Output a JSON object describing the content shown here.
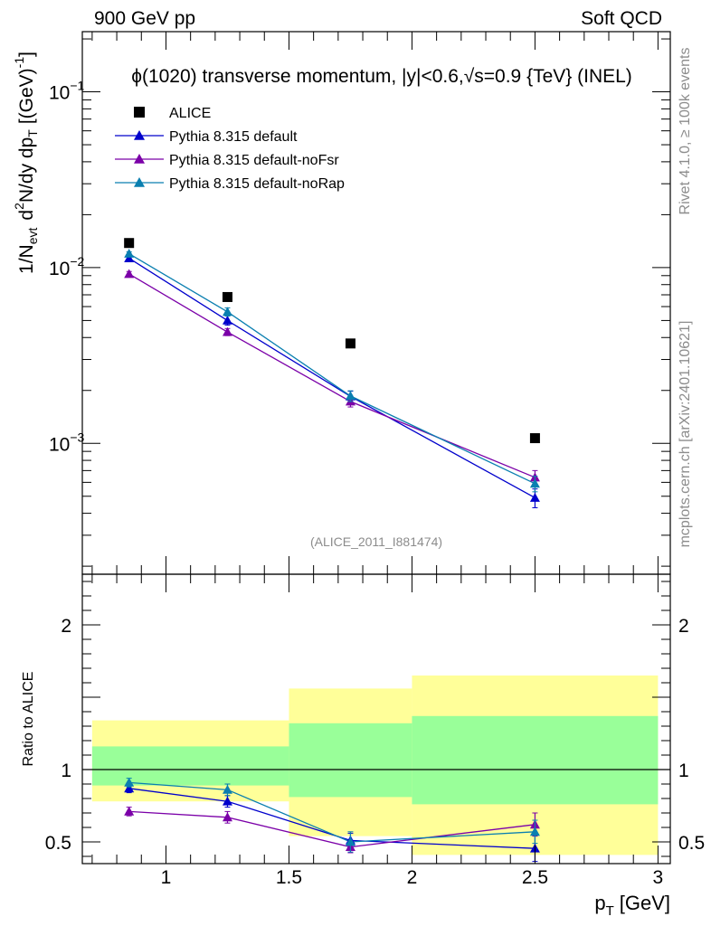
{
  "header": {
    "left": "900 GeV pp",
    "right": "Soft QCD"
  },
  "side_text": {
    "rivet": "Rivet 4.1.0, ≥ 100k events",
    "mcplots": "mcplots.cern.ch [arXiv:2401.10621]"
  },
  "chart_data": [
    {
      "type": "scatter",
      "panel": "main",
      "title": "ϕ(1020) transverse momentum, |y|<0.6,√s=0.9 {TeV} (INEL)",
      "ylabel": "1/N_evt  d²N/dy dp_T [(GeV)⁻¹]",
      "ylabel_parts": {
        "a": "1/N",
        "a_sub": "evt",
        "b": "d",
        "b_sup": "2",
        "c": "N/dy dp",
        "c_sub": "T",
        "d": "[(GeV)",
        "d_sup": "-1",
        "e": "]"
      },
      "yscale": "log",
      "xlim": [
        0.66,
        3.05
      ],
      "ylim": [
        0.00018,
        0.22
      ],
      "yticks": [
        {
          "value": 0.1,
          "base": "10",
          "exp": "−1"
        },
        {
          "value": 0.01,
          "base": "10",
          "exp": "−2"
        },
        {
          "value": 0.001,
          "base": "10",
          "exp": "−3"
        }
      ],
      "watermark": "(ALICE_2011_I881474)",
      "legend_position": "top-left",
      "x": [
        0.85,
        1.25,
        1.75,
        2.5
      ],
      "series": [
        {
          "name": "ALICE",
          "marker": "square",
          "color": "#000000",
          "values": [
            0.0138,
            0.0068,
            0.0037,
            0.00107
          ],
          "errors": [
            0,
            0,
            0,
            0
          ]
        },
        {
          "name": "Pythia 8.315 default",
          "marker": "triangle",
          "color": "#0000cc",
          "values": [
            0.0113,
            0.005,
            0.00185,
            0.00049
          ],
          "errors": [
            0.0003,
            0.0003,
            0.00013,
            6e-05
          ]
        },
        {
          "name": "Pythia 8.315 default-noFsr",
          "marker": "triangle",
          "color": "#7b00a8",
          "values": [
            0.0092,
            0.0043,
            0.00173,
            0.00064
          ],
          "errors": [
            0.0003,
            0.0002,
            0.00012,
            6e-05
          ]
        },
        {
          "name": "Pythia 8.315 default-noRap",
          "marker": "triangle",
          "color": "#0a7fb0",
          "values": [
            0.012,
            0.0056,
            0.00186,
            0.00059
          ],
          "errors": [
            0.0003,
            0.0003,
            0.00013,
            6e-05
          ]
        }
      ]
    },
    {
      "type": "line",
      "panel": "ratio",
      "ylabel": "Ratio to ALICE",
      "xlabel": "p_T [GeV]",
      "xlabel_parts": {
        "a": "p",
        "a_sub": "T",
        "b": "[GeV]"
      },
      "xlim": [
        0.66,
        3.05
      ],
      "ylim": [
        0.35,
        2.35
      ],
      "xticks": [
        {
          "value": 1,
          "label": "1"
        },
        {
          "value": 1.5,
          "label": "1.5"
        },
        {
          "value": 2,
          "label": "2"
        },
        {
          "value": 2.5,
          "label": "2.5"
        },
        {
          "value": 3,
          "label": "3"
        }
      ],
      "yticks": [
        {
          "value": 0.5,
          "label": "0.5"
        },
        {
          "value": 1,
          "label": "1"
        },
        {
          "value": 2,
          "label": "2"
        }
      ],
      "reference_line": 1,
      "bands": [
        {
          "x0": 0.7,
          "x1": 1.5,
          "yellow": [
            0.78,
            1.34
          ],
          "green": [
            0.89,
            1.16
          ]
        },
        {
          "x0": 1.5,
          "x1": 2.0,
          "yellow": [
            0.54,
            1.56
          ],
          "green": [
            0.81,
            1.32
          ]
        },
        {
          "x0": 2.0,
          "x1": 3.0,
          "yellow": [
            0.41,
            1.65
          ],
          "green": [
            0.76,
            1.37
          ]
        }
      ],
      "x": [
        0.85,
        1.25,
        1.75,
        2.5
      ],
      "series": [
        {
          "name": "Pythia 8.315 default",
          "color": "#0000cc",
          "values": [
            0.87,
            0.78,
            0.51,
            0.455
          ],
          "errors": [
            0.03,
            0.04,
            0.05,
            0.09
          ]
        },
        {
          "name": "Pythia 8.315 default-noFsr",
          "color": "#7b00a8",
          "values": [
            0.71,
            0.67,
            0.465,
            0.62
          ],
          "errors": [
            0.03,
            0.04,
            0.04,
            0.08
          ]
        },
        {
          "name": "Pythia 8.315 default-noRap",
          "color": "#0a7fb0",
          "values": [
            0.91,
            0.86,
            0.5,
            0.57
          ],
          "errors": [
            0.03,
            0.04,
            0.07,
            0.08
          ]
        }
      ]
    }
  ]
}
